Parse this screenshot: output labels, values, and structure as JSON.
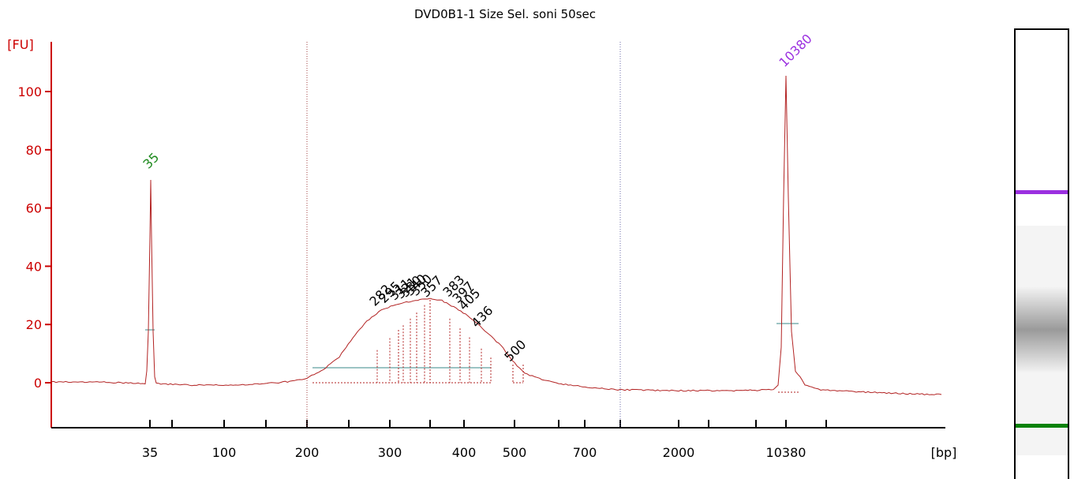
{
  "chart_data": {
    "type": "line",
    "title": "DVD0B1-1 Size Sel. soni 50sec",
    "ylabel": "[FU]",
    "xlabel": "[bp]",
    "ylim": [
      -15,
      115
    ],
    "y_ticks": [
      0,
      20,
      40,
      60,
      80,
      100
    ],
    "x_ticks": [
      "35",
      "100",
      "200",
      "300",
      "400",
      "500",
      "700",
      "2000",
      "10380"
    ],
    "grid": false,
    "series": [
      {
        "x": [
          "35",
          "100",
          "200",
          "250",
          "280",
          "300",
          "350",
          "400",
          "450",
          "500",
          "700",
          "2000",
          "10380"
        ],
        "values": [
          70,
          0,
          1,
          19,
          24,
          26,
          28.5,
          24,
          16,
          6,
          -3,
          -3,
          106
        ]
      }
    ],
    "peak_labels": [
      {
        "label": "35",
        "value": 70,
        "color": "#1e8a1e"
      },
      {
        "label": "282",
        "value": 25,
        "color": "#000000"
      },
      {
        "label": "295",
        "value": 26,
        "color": "#000000"
      },
      {
        "label": "311",
        "value": 27,
        "color": "#000000"
      },
      {
        "label": "321",
        "value": 27.5,
        "color": "#000000"
      },
      {
        "label": "330",
        "value": 28,
        "color": "#000000"
      },
      {
        "label": "340",
        "value": 28.5,
        "color": "#000000"
      },
      {
        "label": "350",
        "value": 28.5,
        "color": "#000000"
      },
      {
        "label": "357",
        "value": 28,
        "color": "#000000"
      },
      {
        "label": "383",
        "value": 26,
        "color": "#000000"
      },
      {
        "label": "397",
        "value": 24,
        "color": "#000000"
      },
      {
        "label": "405",
        "value": 22,
        "color": "#000000"
      },
      {
        "label": "436",
        "value": 17,
        "color": "#000000"
      },
      {
        "label": "500",
        "value": 6,
        "color": "#000000"
      },
      {
        "label": "10380",
        "value": 106,
        "color": "#9b30e0"
      }
    ],
    "gel_bands": [
      {
        "name": "upper-marker",
        "color": "#9b30e0"
      },
      {
        "name": "smear",
        "color": "#9a9a9a"
      },
      {
        "name": "lower-marker",
        "color": "#0a820a"
      }
    ]
  },
  "colors": {
    "axis": "#cc0000",
    "trace": "#b22222",
    "baseline": "#3a8a8a",
    "divider_left": "#a04040",
    "divider_right": "#6a6aa8"
  }
}
